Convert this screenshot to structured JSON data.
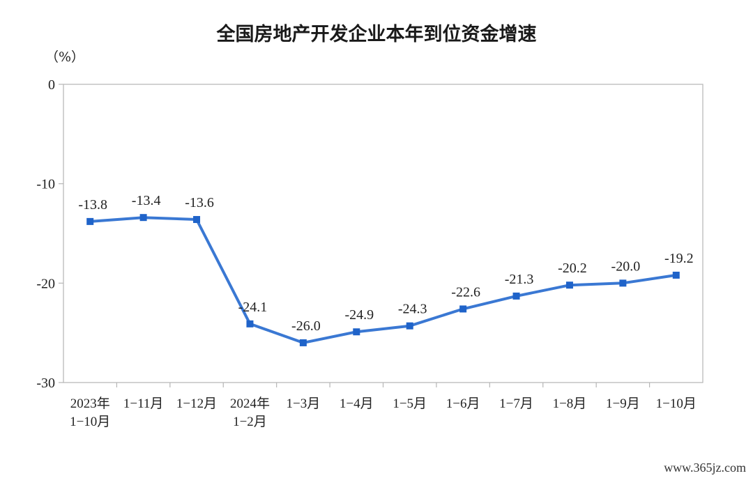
{
  "chart_data": {
    "type": "line",
    "title": "全国房地产开发企业本年到位资金增速",
    "unit": "（%）",
    "categories": [
      [
        "2023年",
        "1−10月"
      ],
      [
        "1−11月"
      ],
      [
        "1−12月"
      ],
      [
        "2024年",
        "1−2月"
      ],
      [
        "1−3月"
      ],
      [
        "1−4月"
      ],
      [
        "1−5月"
      ],
      [
        "1−6月"
      ],
      [
        "1−7月"
      ],
      [
        "1−8月"
      ],
      [
        "1−9月"
      ],
      [
        "1−10月"
      ]
    ],
    "values": [
      -13.8,
      -13.4,
      -13.6,
      -24.1,
      -26.0,
      -24.9,
      -24.3,
      -22.6,
      -21.3,
      -20.2,
      -20.0,
      -19.2
    ],
    "value_labels": [
      "-13.8",
      "-13.4",
      "-13.6",
      "-24.1",
      "-26.0",
      "-24.9",
      "-24.3",
      "-22.6",
      "-21.3",
      "-20.2",
      "-20.0",
      "-19.2"
    ],
    "ylim": [
      -30,
      0
    ],
    "yticks": [
      0,
      -10,
      -20,
      -30
    ],
    "ytick_labels": [
      "0",
      "-10",
      "-20",
      "-30"
    ],
    "grid": false,
    "line_color": "#3a78d3",
    "marker_color": "#1f63c9"
  },
  "watermark": "www.365jz.com"
}
